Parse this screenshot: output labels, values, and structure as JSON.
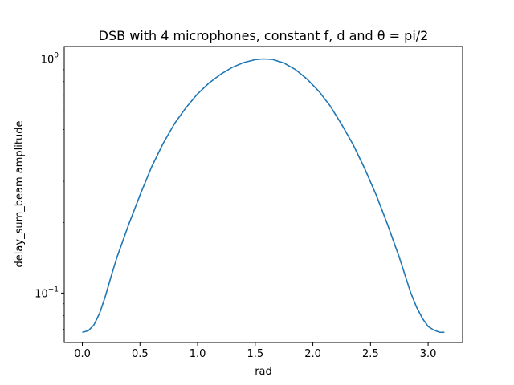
{
  "chart_data": {
    "type": "line",
    "title": "DSB with 4 microphones, constant f, d and θ = pi/2",
    "xlabel": "rad",
    "ylabel": "delay_sum_beam amplitude",
    "yscale": "log",
    "xlim": [
      -0.157,
      3.299
    ],
    "ylim": [
      0.0615,
      1.13
    ],
    "grid": false,
    "xticks": [
      0.0,
      0.5,
      1.0,
      1.5,
      2.0,
      2.5,
      3.0
    ],
    "xtick_labels": [
      "0.0",
      "0.5",
      "1.0",
      "1.5",
      "2.0",
      "2.5",
      "3.0"
    ],
    "yticks": [
      {
        "value": 0.1,
        "base": "10",
        "exp": "−1"
      },
      {
        "value": 1.0,
        "base": "10",
        "exp": "0"
      }
    ],
    "series": [
      {
        "color": "#1f77b4",
        "x": [
          0.0,
          0.05,
          0.1,
          0.15,
          0.2,
          0.25,
          0.3,
          0.4,
          0.5,
          0.6,
          0.7,
          0.8,
          0.9,
          1.0,
          1.1,
          1.2,
          1.3,
          1.4,
          1.5,
          1.571,
          1.65,
          1.75,
          1.85,
          1.95,
          2.05,
          2.15,
          2.25,
          2.35,
          2.45,
          2.55,
          2.65,
          2.75,
          2.85,
          2.9,
          2.95,
          3.0,
          3.05,
          3.1,
          3.1416
        ],
        "y": [
          0.068,
          0.069,
          0.073,
          0.082,
          0.097,
          0.118,
          0.142,
          0.195,
          0.262,
          0.345,
          0.435,
          0.53,
          0.62,
          0.71,
          0.79,
          0.86,
          0.92,
          0.965,
          0.993,
          1.0,
          0.995,
          0.96,
          0.9,
          0.82,
          0.73,
          0.63,
          0.525,
          0.43,
          0.34,
          0.262,
          0.195,
          0.142,
          0.1,
          0.087,
          0.078,
          0.072,
          0.0695,
          0.068,
          0.068
        ]
      }
    ]
  }
}
